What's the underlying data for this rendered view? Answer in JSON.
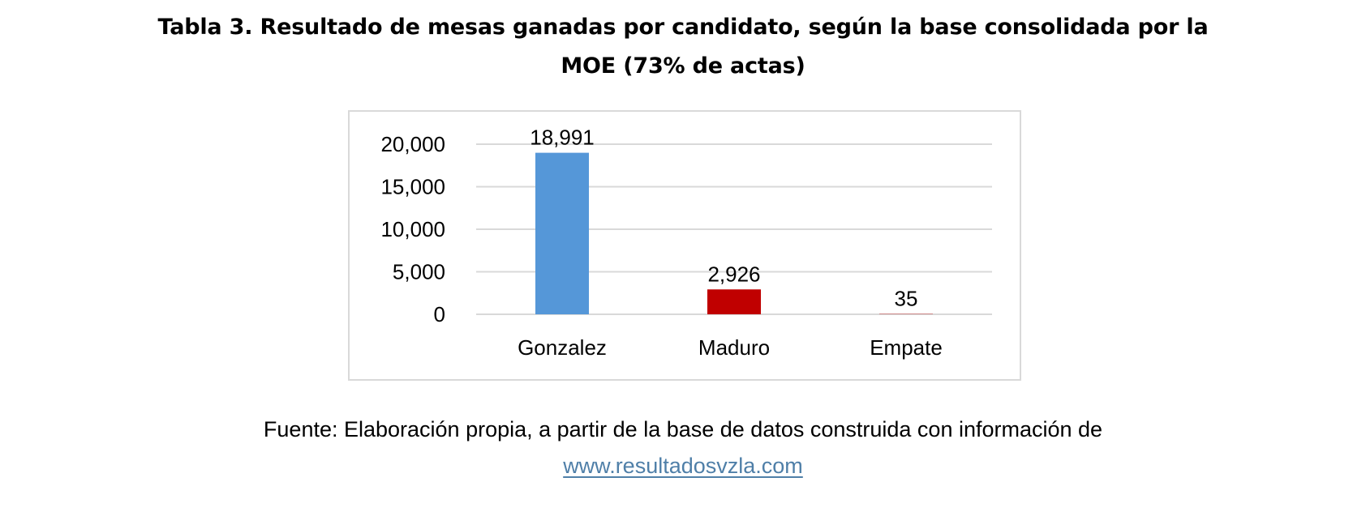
{
  "title": {
    "line1": "Tabla 3. Resultado de mesas ganadas por candidato, según la base consolidada por la",
    "line2": "MOE (73% de actas)"
  },
  "caption": {
    "text": "Fuente: Elaboración propia, a partir de la base de datos construida con información de",
    "link": "www.resultadosvzla.com"
  },
  "chart_data": {
    "type": "bar",
    "title": "",
    "xlabel": "",
    "ylabel": "",
    "categories": [
      "Gonzalez",
      "Maduro",
      "Empate"
    ],
    "values": [
      18991,
      2926,
      35
    ],
    "data_labels": [
      "18,991",
      "2,926",
      "35"
    ],
    "colors": [
      "#5597d8",
      "#c00000",
      "#c00000"
    ],
    "ylim": [
      0,
      20000
    ],
    "yticks": [
      0,
      5000,
      10000,
      15000,
      20000
    ],
    "ytick_labels": [
      "0",
      "5,000",
      "10,000",
      "15,000",
      "20,000"
    ],
    "grid": true,
    "legend": "none"
  }
}
